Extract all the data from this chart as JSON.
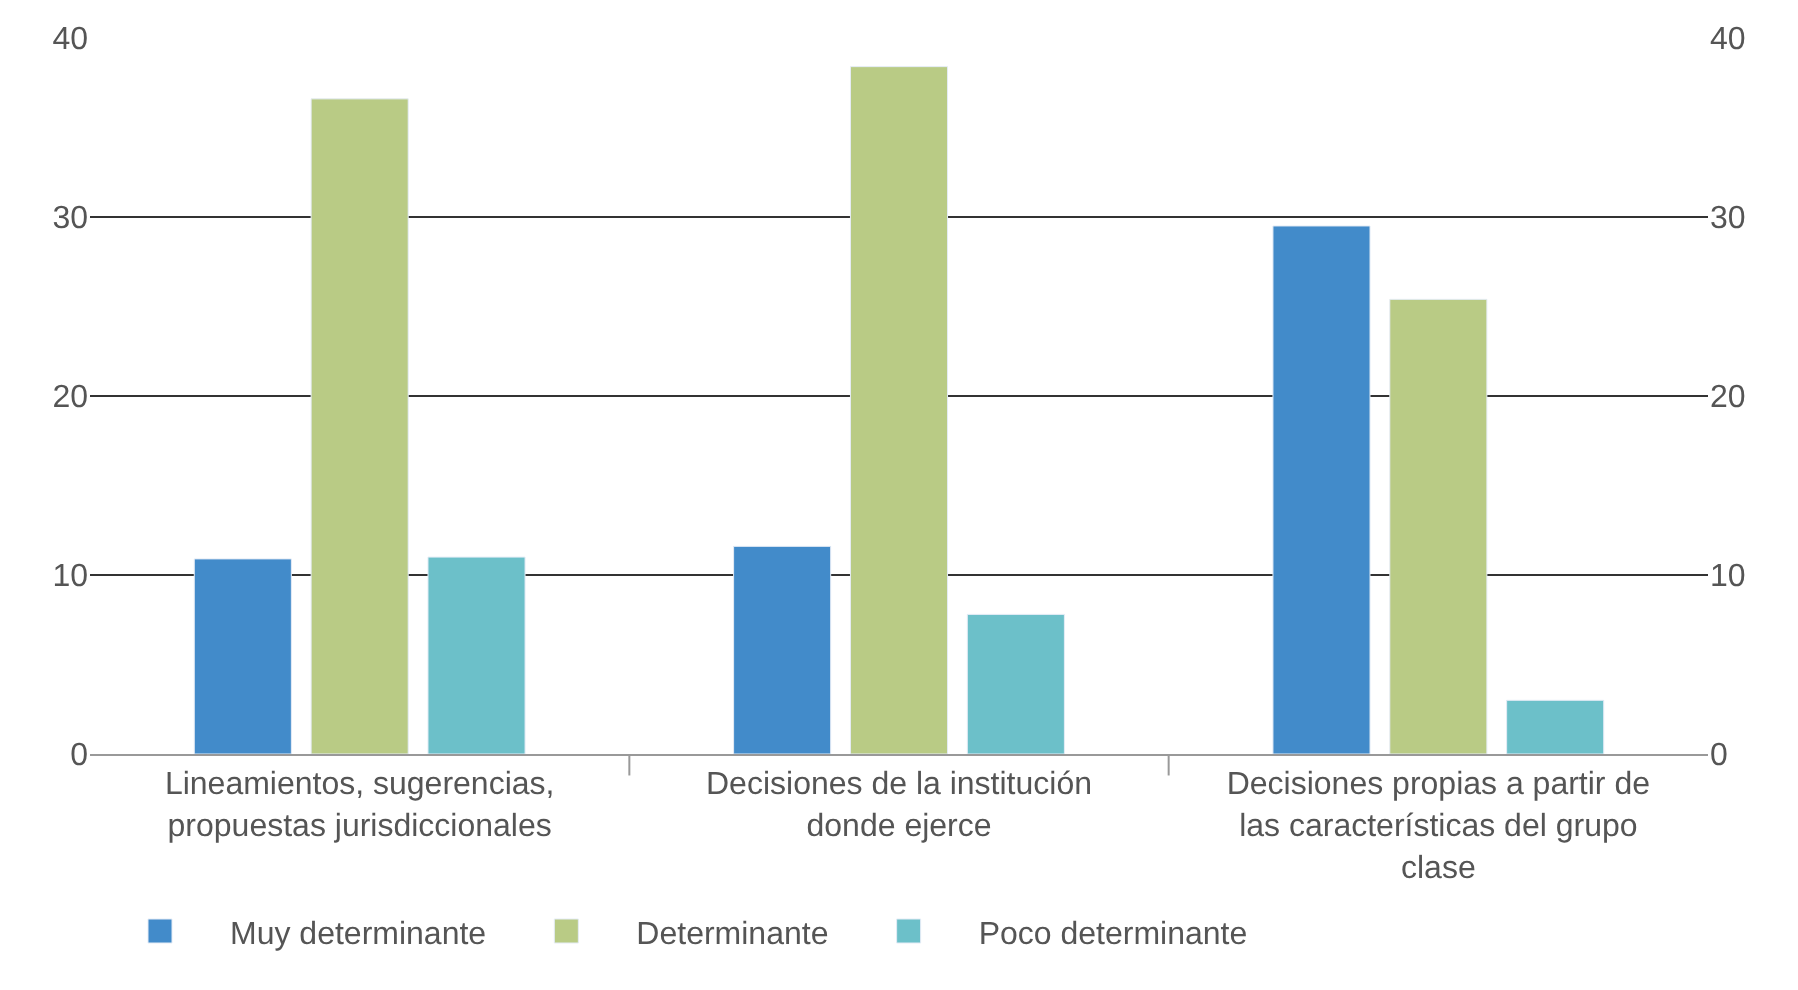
{
  "chart_data": {
    "type": "bar",
    "categories": [
      "Lineamientos, sugerencias, propuestas jurisdiccionales",
      "Decisiones de la institución donde ejerce",
      "Decisiones propias a partir de las características del grupo clase"
    ],
    "series": [
      {
        "name": "Muy determinante",
        "color": "#428bca",
        "values": [
          10.9,
          11.6,
          29.5
        ]
      },
      {
        "name": "Determinante",
        "color": "#b9cb85",
        "values": [
          36.6,
          38.4,
          25.4
        ]
      },
      {
        "name": "Poco determinante",
        "color": "#6cc0c9",
        "values": [
          11.0,
          7.8,
          3.0
        ]
      }
    ],
    "ylim": [
      0,
      40
    ],
    "yticks": [
      0,
      10,
      20,
      30,
      40
    ],
    "y2lim": [
      0,
      40
    ],
    "y2ticks": [
      0,
      10,
      20,
      30,
      40
    ],
    "grid": "y",
    "legend": "bottom"
  }
}
